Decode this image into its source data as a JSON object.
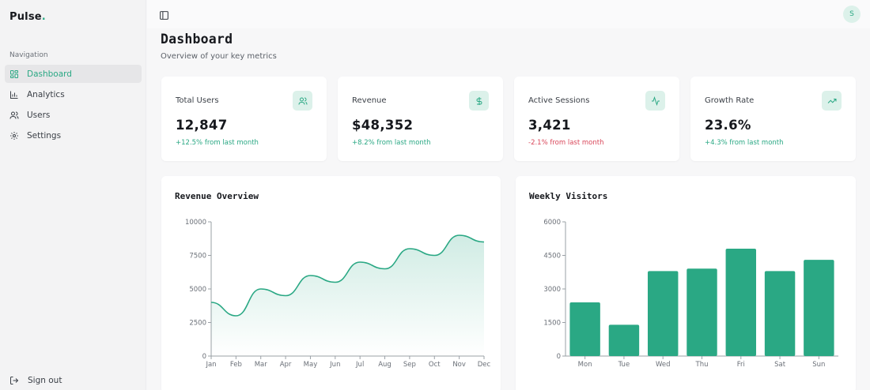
{
  "app": {
    "logo": "Pulse",
    "logo_dot": "."
  },
  "sidebar": {
    "heading": "Navigation",
    "items": [
      {
        "label": "Dashboard",
        "icon": "dashboard-icon",
        "active": true
      },
      {
        "label": "Analytics",
        "icon": "bar-chart-icon",
        "active": false
      },
      {
        "label": "Users",
        "icon": "users-icon",
        "active": false
      },
      {
        "label": "Settings",
        "icon": "gear-icon",
        "active": false
      }
    ],
    "signout_label": "Sign out"
  },
  "header": {
    "avatar_initial": "S"
  },
  "page": {
    "title": "Dashboard",
    "subtitle": "Overview of your key metrics"
  },
  "stats": [
    {
      "label": "Total Users",
      "value": "12,847",
      "delta": "+12.5% from last month",
      "trend": "up",
      "icon": "users-icon"
    },
    {
      "label": "Revenue",
      "value": "$48,352",
      "delta": "+8.2% from last month",
      "trend": "up",
      "icon": "dollar-icon"
    },
    {
      "label": "Active Sessions",
      "value": "3,421",
      "delta": "-2.1% from last month",
      "trend": "down",
      "icon": "activity-icon"
    },
    {
      "label": "Growth Rate",
      "value": "23.6%",
      "delta": "+4.3% from last month",
      "trend": "up",
      "icon": "trending-up-icon"
    }
  ],
  "colors": {
    "accent": "#2aa884",
    "accent_light": "#dcf1ea",
    "negative": "#d9475a"
  },
  "chart_data": [
    {
      "type": "area",
      "title": "Revenue Overview",
      "categories": [
        "Jan",
        "Feb",
        "Mar",
        "Apr",
        "May",
        "Jun",
        "Jul",
        "Aug",
        "Sep",
        "Oct",
        "Nov",
        "Dec"
      ],
      "values": [
        4000,
        3000,
        5000,
        4500,
        6000,
        5500,
        7000,
        6500,
        8000,
        7500,
        9000,
        8500
      ],
      "ylim": [
        0,
        10000
      ],
      "yticks": [
        0,
        2500,
        5000,
        7500,
        10000
      ],
      "grid": false,
      "legend": "none"
    },
    {
      "type": "bar",
      "title": "Weekly Visitors",
      "categories": [
        "Mon",
        "Tue",
        "Wed",
        "Thu",
        "Fri",
        "Sat",
        "Sun"
      ],
      "values": [
        2400,
        1398,
        3800,
        3908,
        4800,
        3800,
        4300
      ],
      "ylim": [
        0,
        6000
      ],
      "yticks": [
        0,
        1500,
        3000,
        4500,
        6000
      ],
      "grid": false,
      "legend": "none"
    }
  ]
}
